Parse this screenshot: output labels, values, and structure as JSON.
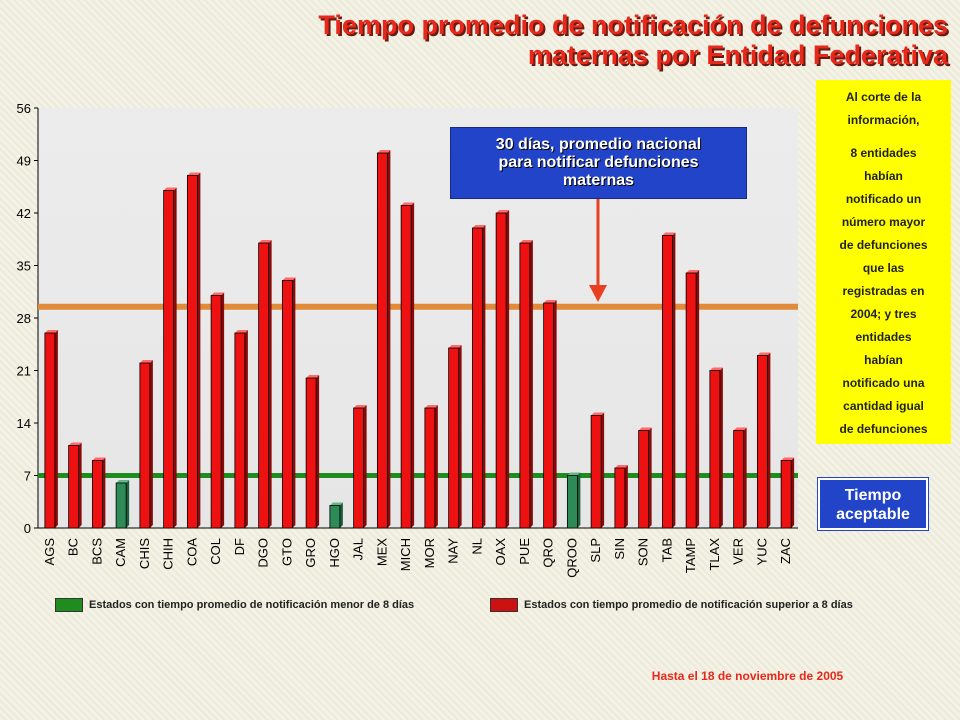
{
  "title_lines": [
    "Tiempo promedio de notificación de defunciones",
    "maternas por Entidad Federativa"
  ],
  "callout_lines": [
    "30 días, promedio nacional",
    "para notificar defunciones",
    "maternas"
  ],
  "note_lines_1": [
    "Al corte de la",
    "información,"
  ],
  "note_lines_2": [
    "8 entidades",
    "habían",
    "notificado un",
    "número mayor",
    "de defunciones",
    "que las",
    "registradas en",
    "2004; y tres",
    "entidades",
    "habían",
    "notificado una",
    "cantidad igual",
    "de defunciones"
  ],
  "acceptable_lines": [
    "Tiempo",
    "aceptable"
  ],
  "legend": {
    "low": "Estados con tiempo promedio de notificación menor de 8 días",
    "high": "Estados con tiempo promedio de notificación superior a 8 días"
  },
  "footer": "Hasta el 18 de noviembre de 2005",
  "colors": {
    "bar_high": "#ee1111",
    "bar_low": "#2e8b57",
    "national_line": "#e08a3a",
    "acceptable_line": "#1e8c1e",
    "callout_bg": "#2244c8",
    "note_bg": "#ffff00",
    "title": "#e8281a",
    "arrow": "#e84020"
  },
  "chart_data": {
    "type": "bar",
    "categories": [
      "AGS",
      "BC",
      "BCS",
      "CAM",
      "CHIS",
      "CHIH",
      "COA",
      "COL",
      "DF",
      "DGO",
      "GTO",
      "GRO",
      "HGO",
      "JAL",
      "MEX",
      "MICH",
      "MOR",
      "NAY",
      "NL",
      "OAX",
      "PUE",
      "QRO",
      "QROO",
      "SLP",
      "SIN",
      "SON",
      "TAB",
      "TAMP",
      "TLAX",
      "VER",
      "YUC",
      "ZAC"
    ],
    "values": [
      26,
      11,
      9,
      6,
      22,
      45,
      47,
      31,
      26,
      38,
      33,
      20,
      3,
      16,
      50,
      43,
      16,
      24,
      40,
      42,
      38,
      30,
      7,
      15,
      8,
      13,
      39,
      34,
      21,
      13,
      23,
      9
    ],
    "ylim": [
      0,
      56
    ],
    "yticks": [
      0,
      7,
      14,
      21,
      28,
      35,
      42,
      49,
      56
    ],
    "reference_lines": [
      {
        "value": 29.5,
        "meaning": "national_average"
      },
      {
        "value": 7,
        "meaning": "acceptable_time"
      }
    ],
    "low_threshold": 8,
    "grid": false
  }
}
